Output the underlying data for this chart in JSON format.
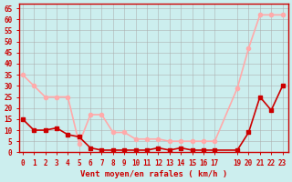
{
  "x_rafales": [
    0,
    1,
    2,
    3,
    4,
    5,
    6,
    7,
    8,
    9,
    10,
    11,
    12,
    13,
    14,
    15,
    16,
    17,
    19,
    20,
    21,
    22,
    23
  ],
  "rafales": [
    35,
    30,
    25,
    25,
    25,
    4,
    17,
    17,
    9,
    9,
    6,
    6,
    6,
    5,
    5,
    5,
    5,
    5,
    29,
    47,
    62,
    62,
    62
  ],
  "x_moyen": [
    0,
    1,
    2,
    3,
    4,
    5,
    6,
    7,
    8,
    9,
    10,
    11,
    12,
    13,
    14,
    15,
    16,
    17,
    19,
    20,
    21,
    22,
    23
  ],
  "moyen": [
    15,
    10,
    10,
    11,
    8,
    7,
    2,
    1,
    1,
    1,
    1,
    1,
    2,
    1,
    2,
    1,
    1,
    1,
    1,
    9,
    25,
    19,
    30
  ],
  "xticks": [
    0,
    1,
    2,
    3,
    4,
    5,
    6,
    7,
    8,
    9,
    10,
    11,
    12,
    13,
    14,
    15,
    16,
    17,
    19,
    20,
    21,
    22,
    23
  ],
  "xlabels": [
    "0",
    "1",
    "2",
    "3",
    "4",
    "5",
    "6",
    "7",
    "8",
    "9",
    "10",
    "11",
    "12",
    "13",
    "14",
    "15",
    "16",
    "17",
    "19",
    "20",
    "21",
    "22",
    "23"
  ],
  "yticks": [
    0,
    5,
    10,
    15,
    20,
    25,
    30,
    35,
    40,
    45,
    50,
    55,
    60,
    65
  ],
  "ylim": [
    0,
    67
  ],
  "xlim": [
    -0.3,
    23.5
  ],
  "color_rafales": "#ffaaaa",
  "color_moyen": "#cc0000",
  "bg_color": "#cceeee",
  "grid_color": "#aaaaaa",
  "xlabel": "Vent moyen/en rafales ( km/h )",
  "marker_size": 3,
  "line_width": 1.2
}
